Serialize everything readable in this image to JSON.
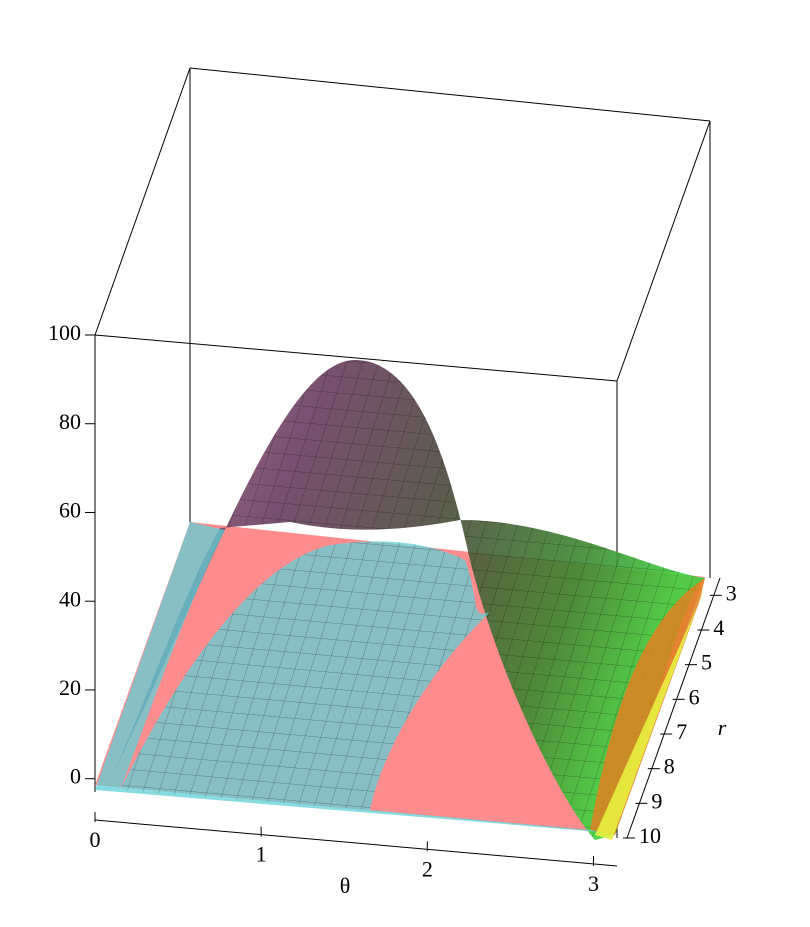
{
  "chart_data": {
    "type": "surface3d",
    "xlabel": "θ",
    "ylabel": "r",
    "xlim": [
      0,
      3.1416
    ],
    "xticks": [
      0,
      1,
      2,
      3
    ],
    "ylim": [
      2.5,
      10
    ],
    "yticks": [
      3,
      4,
      5,
      6,
      7,
      8,
      9,
      10
    ],
    "zlim": [
      -3,
      100
    ],
    "zticks": [
      0,
      20,
      40,
      60,
      80,
      100
    ]
  }
}
